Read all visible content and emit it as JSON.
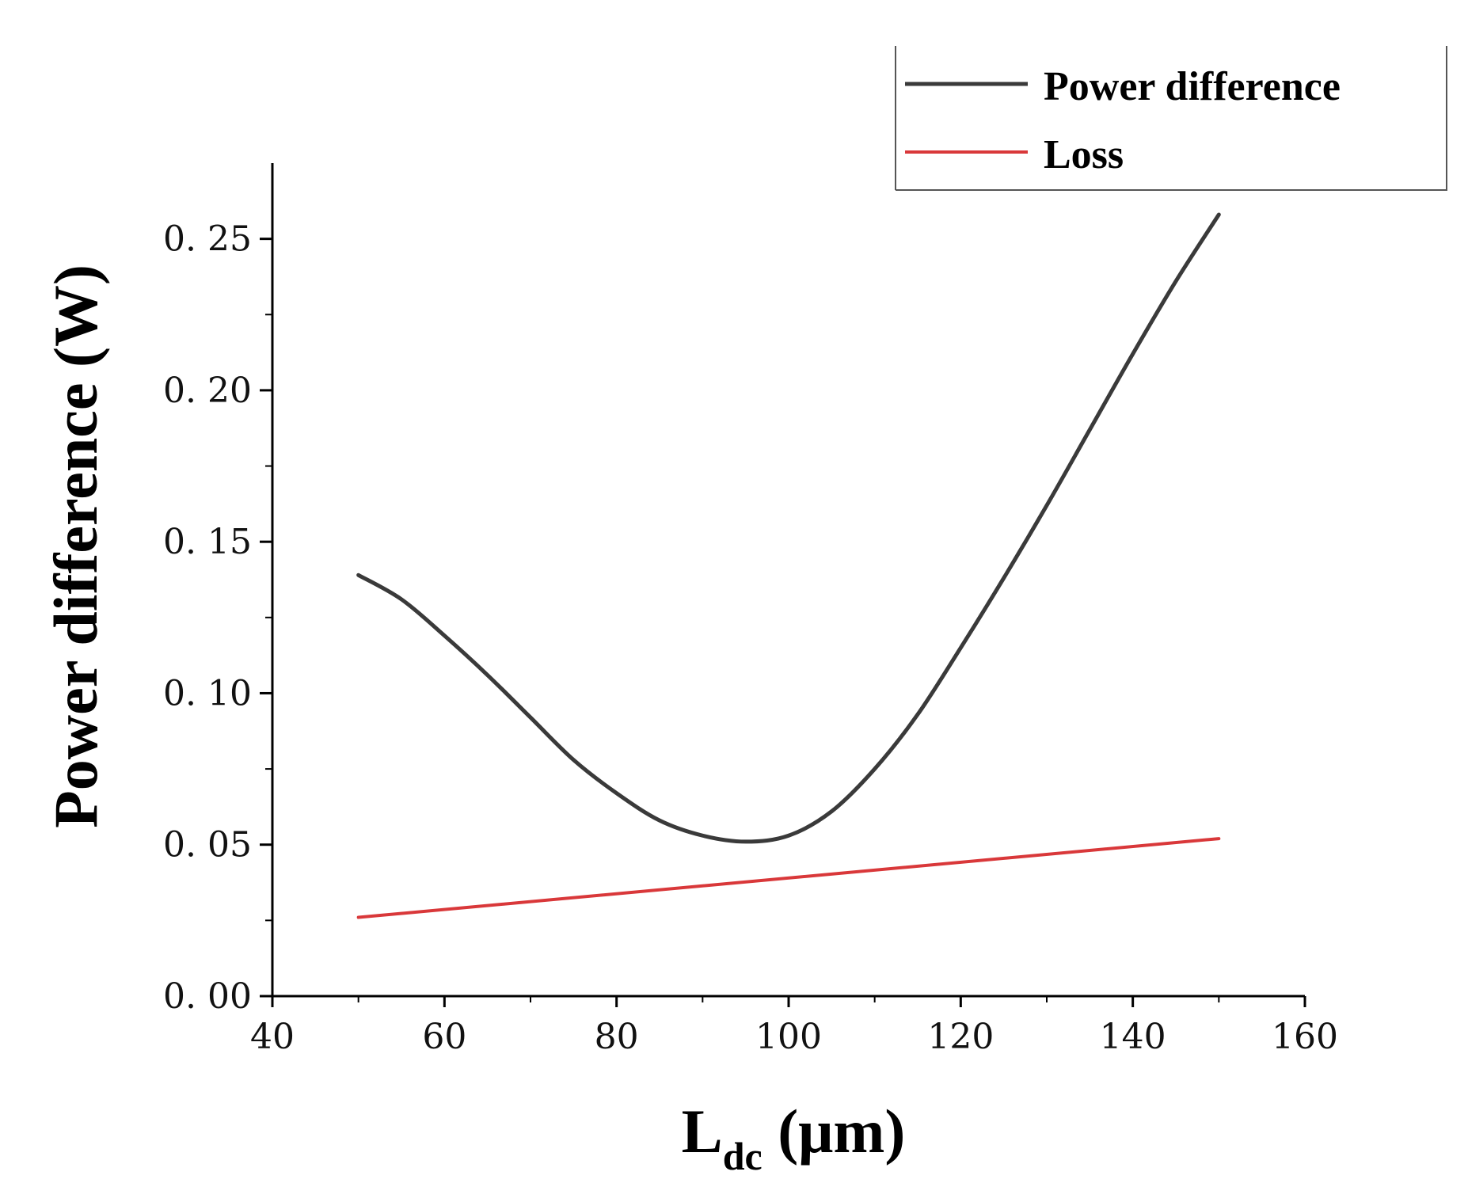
{
  "chart_data": {
    "type": "line",
    "title": "",
    "xlabel": {
      "main": "L",
      "sub": "dc",
      "unit": " (μm)"
    },
    "ylabel": "Power difference (W)",
    "xlim": [
      40,
      160
    ],
    "ylim": [
      0,
      0.275
    ],
    "xticks": [
      40,
      60,
      80,
      100,
      120,
      140,
      160
    ],
    "xtick_labels": [
      "40",
      "60",
      "80",
      "100",
      "120",
      "140",
      "160"
    ],
    "yticks": [
      0.0,
      0.05,
      0.1,
      0.15,
      0.2,
      0.25
    ],
    "ytick_labels": [
      "0. 00",
      "0. 05",
      "0. 10",
      "0. 15",
      "0. 20",
      "0. 25"
    ],
    "legend_position": "top-right",
    "series": [
      {
        "name": "Power difference",
        "color": "#3a3a3a",
        "x": [
          50,
          55,
          60,
          65,
          70,
          75,
          80,
          85,
          90,
          95,
          100,
          105,
          110,
          115,
          120,
          125,
          130,
          135,
          140,
          145,
          150
        ],
        "y": [
          0.139,
          0.131,
          0.119,
          0.106,
          0.092,
          0.078,
          0.067,
          0.058,
          0.053,
          0.051,
          0.053,
          0.061,
          0.075,
          0.093,
          0.115,
          0.138,
          0.162,
          0.187,
          0.212,
          0.236,
          0.258
        ]
      },
      {
        "name": "Loss",
        "color": "#d9383a",
        "x": [
          50,
          150
        ],
        "y": [
          0.026,
          0.052
        ]
      }
    ]
  }
}
